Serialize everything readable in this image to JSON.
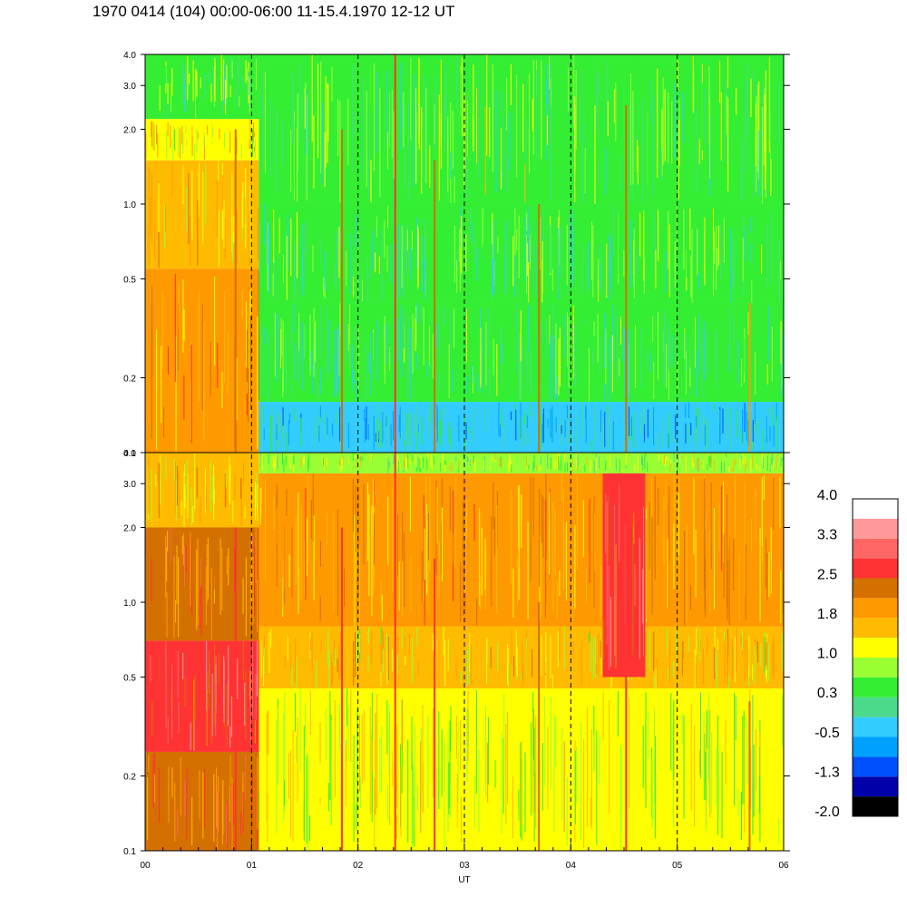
{
  "title": "1970 0414 (104) 00:00-06:00 11-15.4.1970  12-12 UT",
  "chart_data": {
    "type": "heatmap",
    "xlabel": "UT",
    "x_tick_labels": [
      "00",
      "01",
      "02",
      "03",
      "04",
      "05",
      "06"
    ],
    "x_range": [
      0,
      6
    ],
    "dashed_hour_lines": [
      1,
      2,
      3,
      4,
      5
    ],
    "y_scale": "log",
    "y_range": [
      0.1,
      4.0
    ],
    "panels": [
      {
        "id": "upper",
        "y_ticks": [
          0.1,
          0.2,
          0.5,
          1.0,
          2.0,
          3.0,
          4.0
        ],
        "y_tick_labels": [
          "0.1",
          "0.2",
          "0.5",
          "1.0",
          "2.0",
          "3.0",
          "4.0"
        ],
        "regions": [
          {
            "x": [
              0.0,
              1.07
            ],
            "y": [
              0.1,
              0.55
            ],
            "level": 1.9
          },
          {
            "x": [
              0.0,
              1.07
            ],
            "y": [
              0.55,
              1.5
            ],
            "level": 1.6
          },
          {
            "x": [
              0.0,
              1.07
            ],
            "y": [
              1.5,
              2.2
            ],
            "level": 1.2
          },
          {
            "x": [
              0.0,
              1.07
            ],
            "y": [
              2.2,
              4.0
            ],
            "level": 0.6
          },
          {
            "x": [
              1.07,
              6.0
            ],
            "y": [
              0.1,
              0.16
            ],
            "level": -0.3
          },
          {
            "x": [
              1.07,
              6.0
            ],
            "y": [
              0.16,
              0.4
            ],
            "level": 0.3
          },
          {
            "x": [
              1.07,
              6.0
            ],
            "y": [
              0.4,
              1.0
            ],
            "level": 0.4
          },
          {
            "x": [
              1.07,
              6.0
            ],
            "y": [
              1.0,
              4.0
            ],
            "level": 0.6
          }
        ],
        "streaks": [
          {
            "x": 0.85,
            "y": [
              0.1,
              2.0
            ],
            "level": 2.2
          },
          {
            "x": 1.85,
            "y": [
              0.1,
              2.0
            ],
            "level": 2.4
          },
          {
            "x": 2.35,
            "y": [
              0.1,
              4.0
            ],
            "level": 2.6
          },
          {
            "x": 2.72,
            "y": [
              0.1,
              1.5
            ],
            "level": 2.3
          },
          {
            "x": 3.7,
            "y": [
              0.1,
              1.0
            ],
            "level": 2.2
          },
          {
            "x": 4.52,
            "y": [
              0.1,
              2.5
            ],
            "level": 2.2
          },
          {
            "x": 5.68,
            "y": [
              0.1,
              0.4
            ],
            "level": 2.0
          }
        ]
      },
      {
        "id": "lower",
        "y_ticks": [
          0.1,
          0.2,
          0.5,
          1.0,
          2.0,
          3.0,
          4.0
        ],
        "y_tick_labels": [
          "0.1",
          "0.2",
          "0.5",
          "1.0",
          "2.0",
          "3.0",
          "4.0"
        ],
        "regions": [
          {
            "x": [
              0.0,
              1.07
            ],
            "y": [
              0.1,
              0.25
            ],
            "level": 2.3
          },
          {
            "x": [
              0.0,
              1.07
            ],
            "y": [
              0.25,
              0.7
            ],
            "level": 2.8
          },
          {
            "x": [
              0.0,
              1.07
            ],
            "y": [
              0.7,
              2.0
            ],
            "level": 2.2
          },
          {
            "x": [
              0.0,
              1.07
            ],
            "y": [
              2.0,
              4.0
            ],
            "level": 1.5
          },
          {
            "x": [
              1.07,
              6.0
            ],
            "y": [
              0.1,
              0.45
            ],
            "level": 1.0
          },
          {
            "x": [
              1.07,
              6.0
            ],
            "y": [
              0.45,
              0.8
            ],
            "level": 1.4
          },
          {
            "x": [
              1.07,
              6.0
            ],
            "y": [
              0.8,
              3.3
            ],
            "level": 1.8
          },
          {
            "x": [
              1.07,
              6.0
            ],
            "y": [
              3.3,
              4.0
            ],
            "level": 0.8
          },
          {
            "x": [
              4.3,
              4.7
            ],
            "y": [
              0.5,
              3.3
            ],
            "level": 2.8
          }
        ],
        "streaks": [
          {
            "x": 0.85,
            "y": [
              0.1,
              2.0
            ],
            "level": 2.6
          },
          {
            "x": 1.85,
            "y": [
              0.1,
              2.0
            ],
            "level": 2.6
          },
          {
            "x": 2.35,
            "y": [
              0.1,
              4.0
            ],
            "level": 2.8
          },
          {
            "x": 2.72,
            "y": [
              0.1,
              1.5
            ],
            "level": 2.6
          },
          {
            "x": 3.7,
            "y": [
              0.1,
              1.0
            ],
            "level": 2.4
          },
          {
            "x": 4.52,
            "y": [
              0.1,
              3.0
            ],
            "level": 2.8
          },
          {
            "x": 5.68,
            "y": [
              0.1,
              0.4
            ],
            "level": 2.2
          }
        ]
      }
    ],
    "colorbar": {
      "colors": [
        "#000000",
        "#0000aa",
        "#0050ff",
        "#00a0ff",
        "#33ccff",
        "#4cd98c",
        "#33ee33",
        "#99ff33",
        "#ffff00",
        "#ffbb00",
        "#ff9900",
        "#d47000",
        "#ff3333",
        "#ff6666",
        "#ff9999",
        "#ffffff"
      ],
      "labels": [
        "4.0",
        "3.3",
        "2.5",
        "1.8",
        "1.0",
        "0.3",
        "-0.5",
        "-1.3",
        "-2.0"
      ],
      "range": [
        -2.0,
        4.0
      ]
    }
  }
}
